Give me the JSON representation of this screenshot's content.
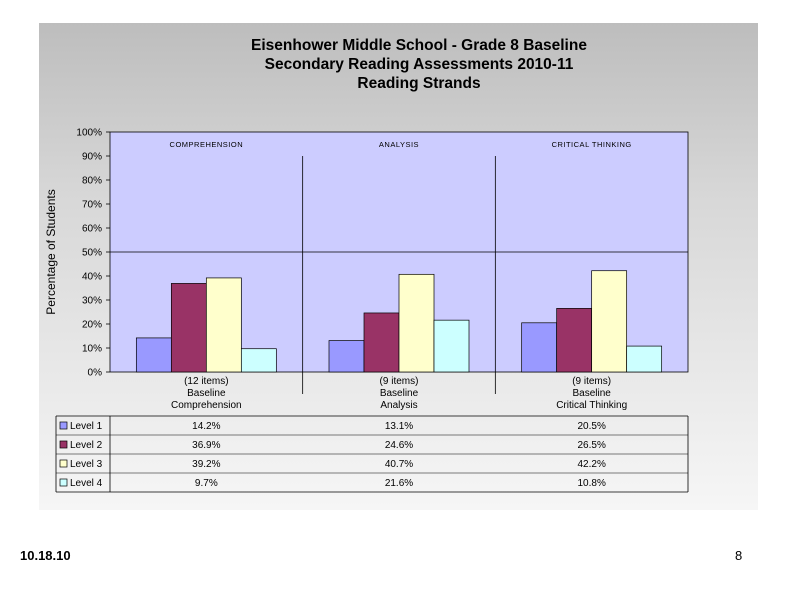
{
  "slide": {
    "date": "10.18.10",
    "page_number": "8"
  },
  "chart_data": {
    "type": "bar",
    "title": [
      "Eisenhower Middle School - Grade 8 Baseline",
      "Secondary Reading Assessments 2010-11",
      "Reading Strands"
    ],
    "ylabel": "Percentage of Students",
    "ylim": [
      0,
      100
    ],
    "ytick_labels": [
      "0%",
      "10%",
      "20%",
      "30%",
      "40%",
      "50%",
      "60%",
      "70%",
      "80%",
      "90%",
      "100%"
    ],
    "section_labels": [
      "COMPREHENSION",
      "ANALYSIS",
      "CRITICAL THINKING"
    ],
    "categories": [
      [
        "(12 items)",
        "Baseline",
        "Comprehension"
      ],
      [
        "(9 items)",
        "Baseline",
        "Analysis"
      ],
      [
        "(9 items)",
        "Baseline",
        "Critical Thinking"
      ]
    ],
    "series": [
      {
        "name": "Level 1",
        "color": "#9999ff",
        "values": [
          14.2,
          13.1,
          20.5
        ],
        "labels": [
          "14.2%",
          "13.1%",
          "20.5%"
        ]
      },
      {
        "name": "Level 2",
        "color": "#993366",
        "values": [
          36.9,
          24.6,
          26.5
        ],
        "labels": [
          "36.9%",
          "24.6%",
          "26.5%"
        ]
      },
      {
        "name": "Level 3",
        "color": "#ffffcc",
        "values": [
          39.2,
          40.7,
          42.2
        ],
        "labels": [
          "39.2%",
          "40.7%",
          "42.2%"
        ]
      },
      {
        "name": "Level 4",
        "color": "#ccffff",
        "values": [
          9.7,
          21.6,
          10.8
        ],
        "labels": [
          "9.7%",
          "21.6%",
          "10.8%"
        ]
      }
    ],
    "reference_line": 50,
    "grid": false,
    "legend": "data-table",
    "plot_background": "#ccccff"
  }
}
